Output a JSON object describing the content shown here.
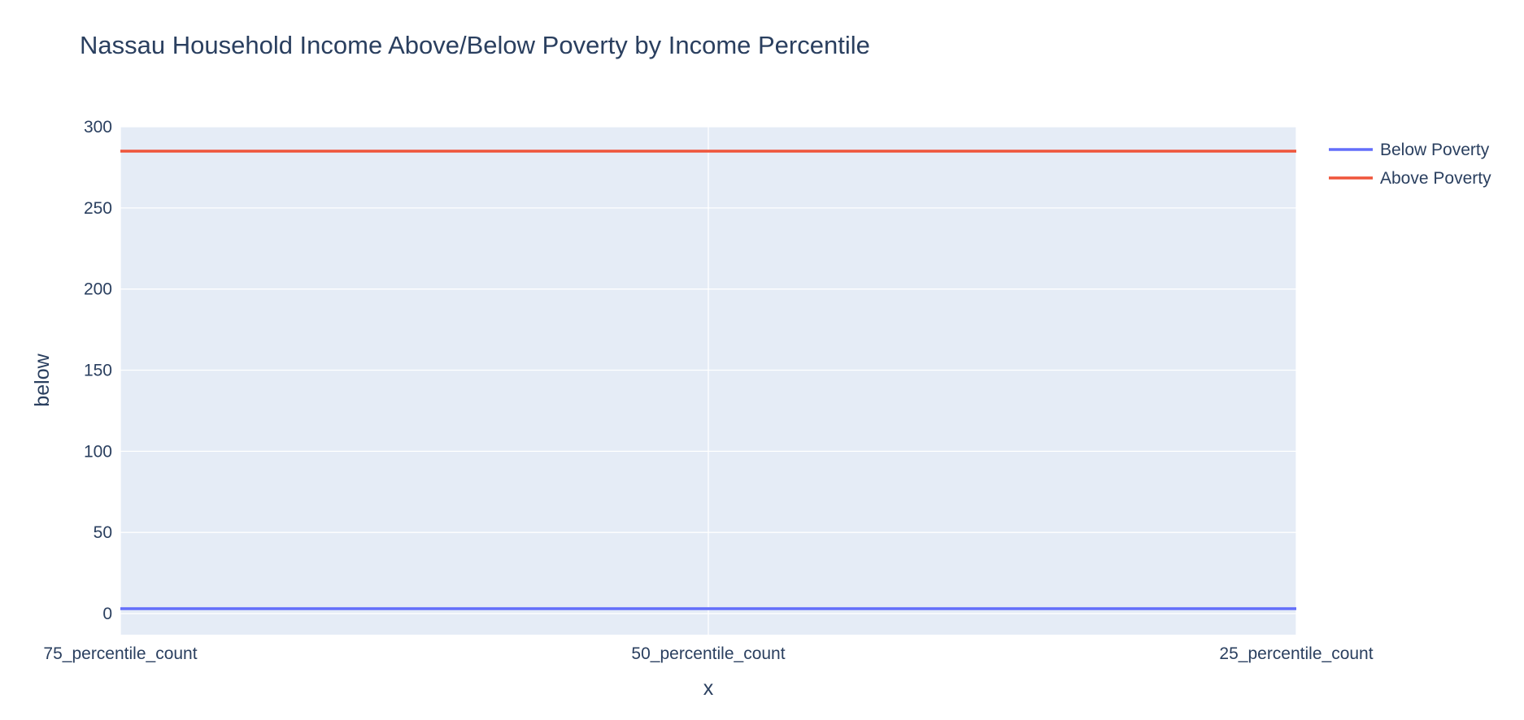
{
  "chart_data": {
    "type": "line",
    "title": "Nassau Household Income Above/Below Poverty by Income Percentile",
    "xlabel": "x",
    "ylabel": "below",
    "x": [
      "75_percentile_count",
      "50_percentile_count",
      "25_percentile_count"
    ],
    "ylim": [
      -13,
      300
    ],
    "yticks": [
      0,
      50,
      100,
      150,
      200,
      250,
      300
    ],
    "grid": true,
    "legend_position": "top-right",
    "series": [
      {
        "name": "Below Poverty",
        "color": "#636efa",
        "values": [
          3,
          3,
          3
        ]
      },
      {
        "name": "Above Poverty",
        "color": "#ef553b",
        "values": [
          285,
          285,
          285
        ]
      }
    ]
  },
  "colors": {
    "plot_background": "#e5ecf6",
    "grid": "#ffffff",
    "text": "#2a3f5f"
  }
}
